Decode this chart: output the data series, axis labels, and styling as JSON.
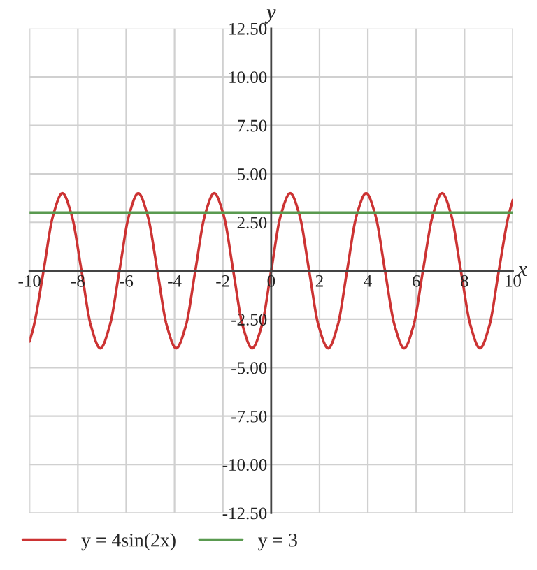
{
  "chart_data": {
    "type": "line",
    "xlabel": "x",
    "ylabel": "y",
    "xlim": [
      -10,
      10
    ],
    "xticks": [
      -10,
      -8,
      -6,
      -4,
      -2,
      0,
      2,
      4,
      6,
      8,
      10
    ],
    "ylim": [
      -12.5,
      12.5
    ],
    "yticks": [
      {
        "value": -12.5,
        "label": "-12.50"
      },
      {
        "value": -10,
        "label": "-10.00"
      },
      {
        "value": -7.5,
        "label": "-7.50"
      },
      {
        "value": -5,
        "label": "-5.00"
      },
      {
        "value": -2.5,
        "label": "-2.50"
      },
      {
        "value": 2.5,
        "label": "2.50"
      },
      {
        "value": 5,
        "label": "5.00"
      },
      {
        "value": 7.5,
        "label": "7.50"
      },
      {
        "value": 10,
        "label": "10.00"
      },
      {
        "value": 12.5,
        "label": "12.50"
      }
    ],
    "grid": true,
    "legend": "bottom",
    "marker": "none",
    "line_style": "solid",
    "series": [
      {
        "name": "y = 4sin(2x)",
        "color": "#cc3333",
        "x": [
          -10,
          -9.82,
          -9.42,
          -9.03,
          -8.64,
          -8.25,
          -7.85,
          -7.46,
          -7.07,
          -6.68,
          -6.28,
          -5.89,
          -5.5,
          -5.11,
          -4.71,
          -4.32,
          -3.93,
          -3.53,
          -3.14,
          -2.75,
          -2.36,
          -1.96,
          -1.57,
          -1.18,
          -0.79,
          -0.39,
          0,
          0.39,
          0.79,
          1.18,
          1.57,
          1.96,
          2.36,
          2.75,
          3.14,
          3.53,
          3.93,
          4.32,
          4.71,
          5.11,
          5.5,
          5.89,
          6.28,
          6.68,
          7.07,
          7.46,
          7.85,
          8.25,
          8.64,
          9.03,
          9.42,
          9.82,
          10
        ],
        "values": [
          -3.65,
          -2.83,
          0,
          2.83,
          4,
          2.83,
          0,
          -2.83,
          -4,
          -2.83,
          0,
          2.83,
          4,
          2.83,
          0,
          -2.83,
          -4,
          -2.83,
          0,
          2.83,
          4,
          2.83,
          0,
          -2.83,
          -4,
          -2.83,
          0,
          2.83,
          4,
          2.83,
          0,
          -2.83,
          -4,
          -2.83,
          0,
          2.83,
          4,
          2.83,
          0,
          -2.83,
          -4,
          -2.83,
          0,
          2.83,
          4,
          2.83,
          0,
          -2.83,
          -4,
          -2.83,
          0,
          2.83,
          3.65
        ]
      },
      {
        "name": "y = 3",
        "color": "#5a9a50",
        "x": [
          -10,
          10
        ],
        "values": [
          3,
          3
        ]
      }
    ]
  }
}
